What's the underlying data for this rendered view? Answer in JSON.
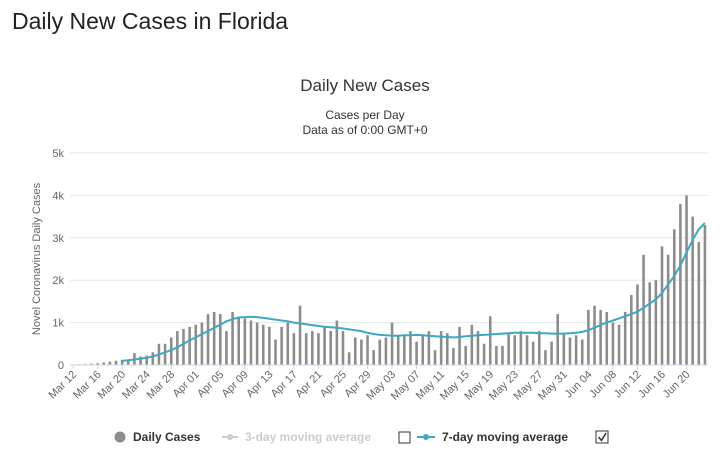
{
  "page": {
    "title": "Daily New Cases in Florida"
  },
  "colors": {
    "bar": "#8c8c8c",
    "line": "#3fa8be",
    "disabled": "#cccccc",
    "grid": "#e6e6e6"
  },
  "legend": {
    "daily": "Daily Cases",
    "avg3": "3-day moving average",
    "avg7": "7-day moving average",
    "avg3_checked": false,
    "avg7_checked": true
  },
  "chart_data": {
    "type": "bar",
    "title": "Daily New Cases",
    "subtitle": "Cases per Day",
    "subtitle2": "Data as of 0:00 GMT+0",
    "ylabel": "Novel Coronavirus Daily Cases",
    "xlabel": "",
    "ylim": [
      0,
      5000
    ],
    "yticks": [
      0,
      1000,
      2000,
      3000,
      4000,
      5000
    ],
    "ytick_labels": [
      "0",
      "1k",
      "2k",
      "3k",
      "4k",
      "5k"
    ],
    "xtick_labels": [
      "Mar 12",
      "Mar 16",
      "Mar 20",
      "Mar 24",
      "Mar 28",
      "Apr 01",
      "Apr 05",
      "Apr 09",
      "Apr 13",
      "Apr 17",
      "Apr 21",
      "Apr 25",
      "Apr 29",
      "May 03",
      "May 07",
      "May 11",
      "May 15",
      "May 19",
      "May 23",
      "May 27",
      "May 31",
      "Jun 04",
      "Jun 08",
      "Jun 12",
      "Jun 16",
      "Jun 20"
    ],
    "grid": true,
    "legend_position": "bottom",
    "categories": [
      "Mar 12",
      "Mar 13",
      "Mar 14",
      "Mar 15",
      "Mar 16",
      "Mar 17",
      "Mar 18",
      "Mar 19",
      "Mar 20",
      "Mar 21",
      "Mar 22",
      "Mar 23",
      "Mar 24",
      "Mar 25",
      "Mar 26",
      "Mar 27",
      "Mar 28",
      "Mar 29",
      "Mar 30",
      "Mar 31",
      "Apr 01",
      "Apr 02",
      "Apr 03",
      "Apr 04",
      "Apr 05",
      "Apr 06",
      "Apr 07",
      "Apr 08",
      "Apr 09",
      "Apr 10",
      "Apr 11",
      "Apr 12",
      "Apr 13",
      "Apr 14",
      "Apr 15",
      "Apr 16",
      "Apr 17",
      "Apr 18",
      "Apr 19",
      "Apr 20",
      "Apr 21",
      "Apr 22",
      "Apr 23",
      "Apr 24",
      "Apr 25",
      "Apr 26",
      "Apr 27",
      "Apr 28",
      "Apr 29",
      "Apr 30",
      "May 01",
      "May 02",
      "May 03",
      "May 04",
      "May 05",
      "May 06",
      "May 07",
      "May 08",
      "May 09",
      "May 10",
      "May 11",
      "May 12",
      "May 13",
      "May 14",
      "May 15",
      "May 16",
      "May 17",
      "May 18",
      "May 19",
      "May 20",
      "May 21",
      "May 22",
      "May 23",
      "May 24",
      "May 25",
      "May 26",
      "May 27",
      "May 28",
      "May 29",
      "May 30",
      "May 31",
      "Jun 01",
      "Jun 02",
      "Jun 03",
      "Jun 04",
      "Jun 05",
      "Jun 06",
      "Jun 07",
      "Jun 08",
      "Jun 09",
      "Jun 10",
      "Jun 11",
      "Jun 12",
      "Jun 13",
      "Jun 14",
      "Jun 15",
      "Jun 16",
      "Jun 17",
      "Jun 18",
      "Jun 19",
      "Jun 20",
      "Jun 21",
      "Jun 22",
      "Jun 23"
    ],
    "series": [
      {
        "name": "Daily Cases",
        "values": [
          10,
          15,
          20,
          30,
          40,
          60,
          80,
          100,
          120,
          130,
          280,
          200,
          220,
          300,
          500,
          500,
          650,
          800,
          850,
          900,
          950,
          1000,
          1200,
          1250,
          1200,
          800,
          1250,
          1100,
          1100,
          1050,
          1000,
          950,
          900,
          600,
          900,
          1000,
          750,
          1400,
          750,
          800,
          750,
          900,
          800,
          1050,
          800,
          300,
          650,
          600,
          700,
          350,
          600,
          650,
          1000,
          700,
          700,
          800,
          550,
          700,
          800,
          350,
          800,
          750,
          400,
          900,
          450,
          950,
          800,
          500,
          1150,
          450,
          450,
          750,
          700,
          800,
          700,
          550,
          800,
          350,
          550,
          1200,
          750,
          650,
          700,
          600,
          1300,
          1400,
          1300,
          1250,
          1000,
          950,
          1250,
          1650,
          1900,
          2600,
          1950,
          2000,
          2800,
          2600,
          3200,
          3800,
          4000,
          3500,
          2900,
          3300
        ]
      },
      {
        "name": "7-day moving average",
        "values": [
          null,
          null,
          null,
          null,
          null,
          null,
          null,
          null,
          100,
          110,
          130,
          150,
          170,
          200,
          250,
          300,
          350,
          420,
          500,
          580,
          650,
          730,
          800,
          880,
          950,
          1030,
          1080,
          1120,
          1130,
          1140,
          1130,
          1110,
          1090,
          1070,
          1050,
          1030,
          1000,
          980,
          960,
          940,
          920,
          900,
          890,
          880,
          860,
          840,
          820,
          800,
          760,
          730,
          710,
          700,
          690,
          690,
          700,
          700,
          710,
          700,
          690,
          680,
          670,
          660,
          650,
          660,
          680,
          690,
          700,
          710,
          720,
          730,
          740,
          750,
          760,
          760,
          760,
          760,
          750,
          750,
          740,
          740,
          740,
          750,
          760,
          780,
          820,
          880,
          940,
          1000,
          1050,
          1100,
          1150,
          1200,
          1260,
          1350,
          1450,
          1550,
          1700,
          1900,
          2100,
          2350,
          2650,
          2950,
          3200,
          3350
        ]
      }
    ]
  }
}
